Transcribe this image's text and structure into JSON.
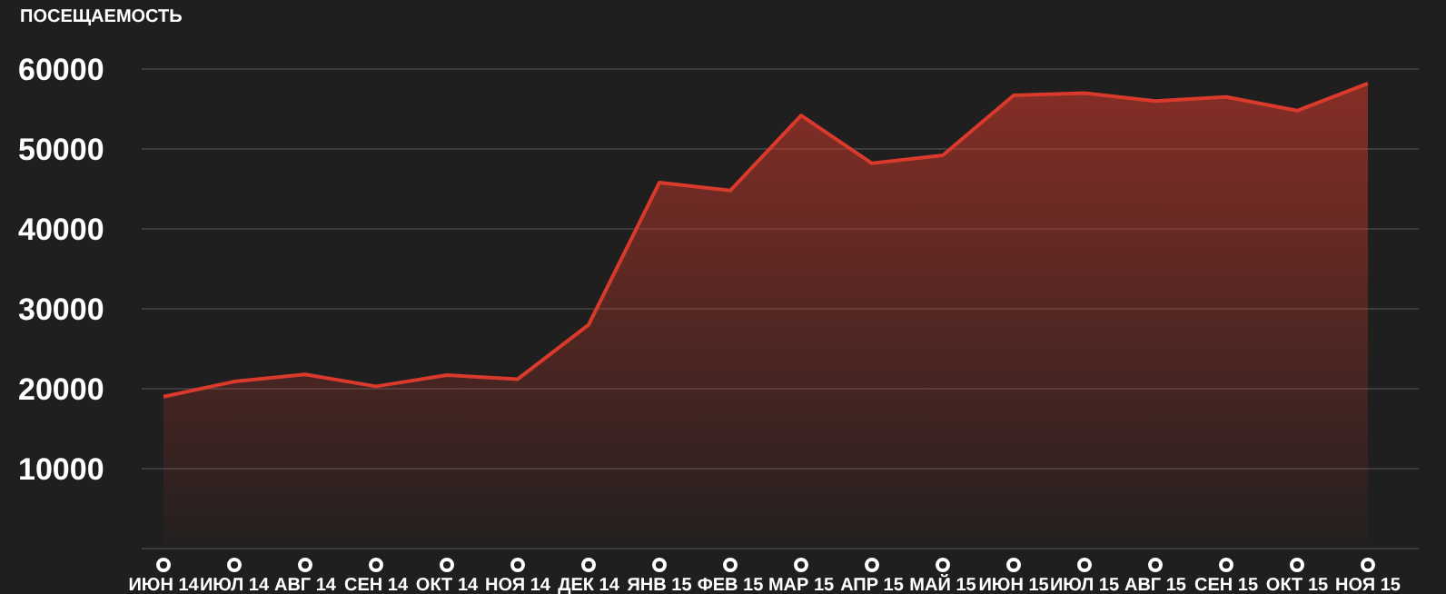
{
  "chart_data": {
    "type": "area",
    "ylabel": "ПОСЕЩАЕМОСТЬ",
    "categories": [
      "ИЮН 14",
      "ИЮЛ 14",
      "АВГ 14",
      "СЕН 14",
      "ОКТ 14",
      "НОЯ 14",
      "ДЕК 14",
      "ЯНВ 15",
      "ФЕВ 15",
      "МАР 15",
      "АПР 15",
      "МАЙ 15",
      "ИЮН 15",
      "ИЮЛ 15",
      "АВГ 15",
      "СЕН 15",
      "ОКТ 15",
      "НОЯ 15"
    ],
    "series": [
      {
        "color": "#d93a2b",
        "values": [
          19000,
          20900,
          21800,
          20300,
          21700,
          21200,
          28000,
          45800,
          44800,
          54200,
          48200,
          49200,
          56700,
          57000,
          56000,
          56500,
          54800,
          58200
        ]
      }
    ],
    "ylim": [
      0,
      60000
    ],
    "yticks": [
      10000,
      20000,
      30000,
      40000,
      50000,
      60000
    ],
    "grid": "y",
    "legend": false
  }
}
